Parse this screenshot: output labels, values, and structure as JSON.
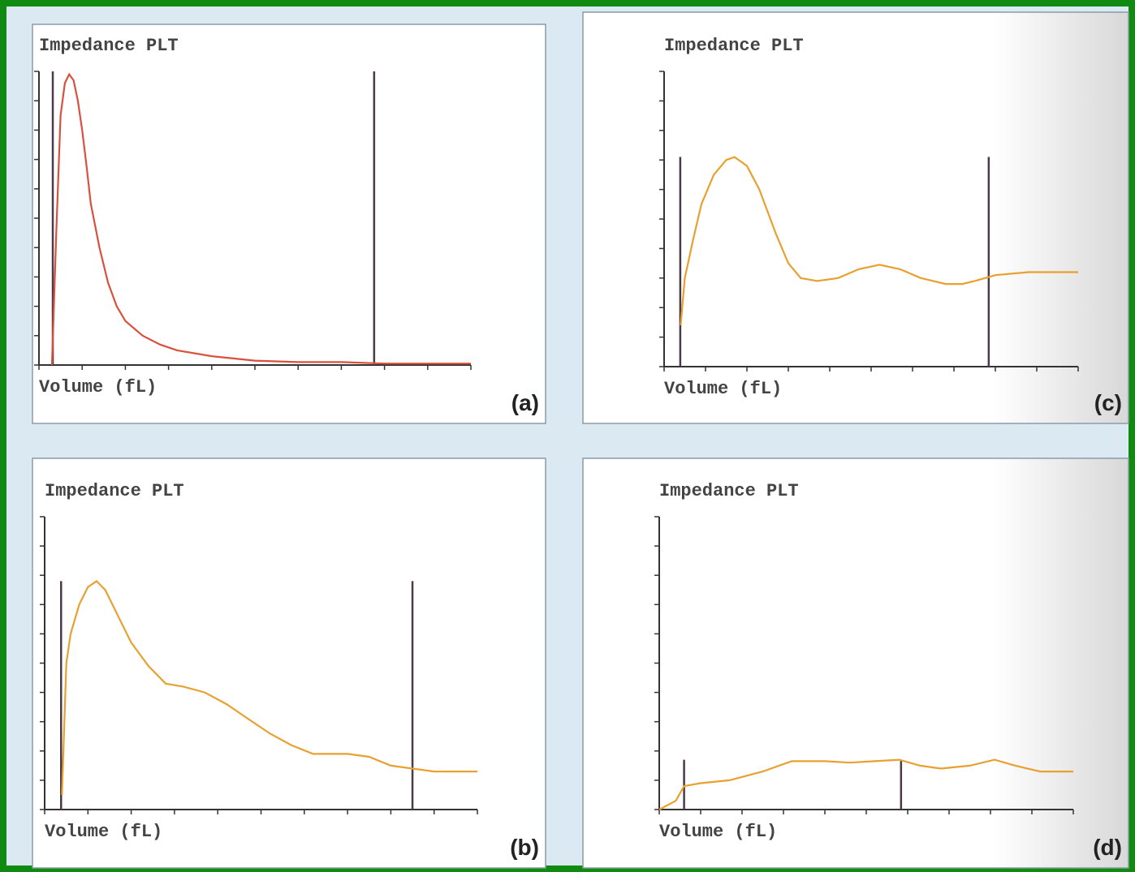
{
  "chart_data": [
    {
      "type": "line",
      "title": "Impedance PLT",
      "x_label": "Volume (fL)",
      "panel_label": "(a)",
      "color": "#d9503c",
      "xlim": [
        0,
        100
      ],
      "ylim": [
        0,
        100
      ],
      "x": [
        3,
        4,
        5,
        6,
        7,
        8,
        9,
        10,
        11,
        12,
        14,
        16,
        18,
        20,
        24,
        28,
        32,
        40,
        50,
        60,
        70,
        80,
        100
      ],
      "values": [
        0,
        45,
        85,
        96,
        99,
        97,
        90,
        80,
        68,
        55,
        40,
        28,
        20,
        15,
        10,
        7,
        5,
        3,
        1.5,
        1,
        1,
        0.5,
        0.5
      ],
      "markers": [
        {
          "x": 3.2,
          "top": 100
        },
        {
          "x": 77.6,
          "top": 100
        }
      ]
    },
    {
      "type": "line",
      "title": "Impedance PLT",
      "x_label": "Volume (fL)",
      "panel_label": "(c)",
      "color": "#e8a030",
      "xlim": [
        0,
        100
      ],
      "ylim": [
        0,
        100
      ],
      "x": [
        4,
        5,
        7,
        9,
        12,
        15,
        17,
        20,
        23,
        27,
        30,
        33,
        37,
        42,
        47,
        52,
        57,
        62,
        68,
        72,
        75,
        80,
        88,
        94,
        100
      ],
      "values": [
        14,
        30,
        43,
        55,
        65,
        70,
        71,
        68,
        60,
        45,
        35,
        30,
        29,
        30,
        33,
        34.5,
        33,
        30,
        28,
        28,
        29,
        31,
        32,
        32,
        32
      ],
      "markers": [
        {
          "x": 3.9,
          "top": 71
        },
        {
          "x": 78.4,
          "top": 71
        }
      ]
    },
    {
      "type": "line",
      "title": "Impedance PLT",
      "x_label": "Volume (fL)",
      "panel_label": "(b)",
      "color": "#e8a030",
      "xlim": [
        0,
        100
      ],
      "ylim": [
        0,
        100
      ],
      "x": [
        4,
        5,
        6,
        8,
        10,
        12,
        14,
        17,
        20,
        24,
        28,
        32,
        37,
        42,
        47,
        52,
        57,
        62,
        70,
        75,
        80,
        85,
        90,
        95,
        100
      ],
      "values": [
        5,
        50,
        60,
        70,
        76,
        78,
        75,
        66,
        57,
        49,
        43,
        42,
        40,
        36,
        31,
        26,
        22,
        19,
        19,
        18,
        15,
        14,
        13,
        13,
        13
      ],
      "markers": [
        {
          "x": 3.8,
          "top": 78
        },
        {
          "x": 85,
          "top": 78
        }
      ]
    },
    {
      "type": "line",
      "title": "Impedance PLT",
      "x_label": "Volume (fL)",
      "panel_label": "(d)",
      "color": "#e8a030",
      "xlim": [
        0,
        100
      ],
      "ylim": [
        0,
        100
      ],
      "x": [
        0,
        4,
        6,
        10,
        17,
        25,
        32,
        40,
        46,
        52,
        58,
        63,
        68,
        75,
        81,
        86,
        92,
        100
      ],
      "values": [
        0,
        3,
        8,
        9,
        10,
        13,
        16.5,
        16.5,
        16,
        16.5,
        17,
        15,
        14,
        15,
        17,
        15,
        13,
        13
      ],
      "markers": [
        {
          "x": 6,
          "top": 17
        },
        {
          "x": 58.4,
          "top": 17
        }
      ]
    }
  ]
}
